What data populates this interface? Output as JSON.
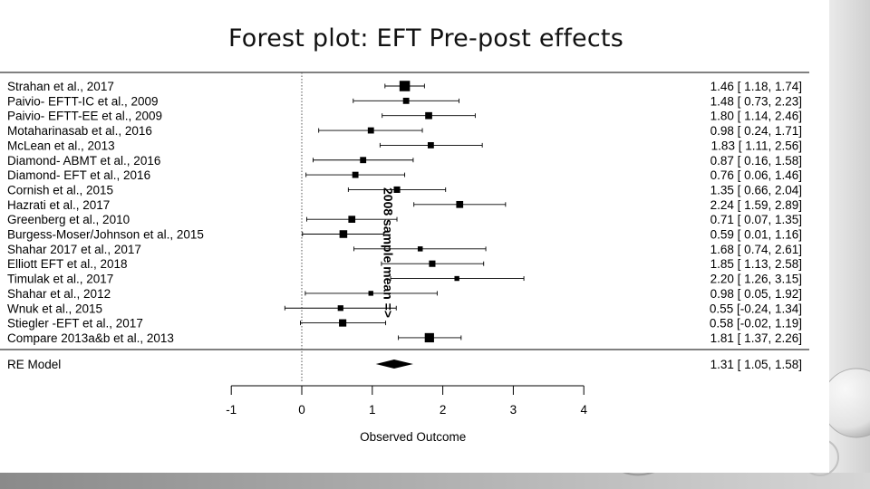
{
  "title": "Forest plot: EFT Pre-post effects",
  "chart_data": {
    "type": "forest",
    "xlabel": "Observed Outcome",
    "xlim": [
      -1,
      4
    ],
    "xticks": [
      -1,
      0,
      1,
      2,
      3,
      4
    ],
    "reference_line": 0,
    "studies": [
      {
        "label": "Strahan et al., 2017",
        "estimate": 1.46,
        "lower": 1.18,
        "upper": 1.74,
        "ci_text": "1.46 [ 1.18, 1.74]",
        "weight": 1.0
      },
      {
        "label": "Paivio- EFTT-IC et al., 2009",
        "estimate": 1.48,
        "lower": 0.73,
        "upper": 2.23,
        "ci_text": "1.48 [ 0.73, 2.23]",
        "weight": 0.45
      },
      {
        "label": "Paivio- EFTT-EE et al., 2009",
        "estimate": 1.8,
        "lower": 1.14,
        "upper": 2.46,
        "ci_text": "1.80 [ 1.14, 2.46]",
        "weight": 0.55
      },
      {
        "label": "Motaharinasab et al., 2016",
        "estimate": 0.98,
        "lower": 0.24,
        "upper": 1.71,
        "ci_text": "0.98 [ 0.24, 1.71]",
        "weight": 0.45
      },
      {
        "label": "McLean et al., 2013",
        "estimate": 1.83,
        "lower": 1.11,
        "upper": 2.56,
        "ci_text": "1.83 [ 1.11, 2.56]",
        "weight": 0.45
      },
      {
        "label": "Diamond- ABMT et al., 2016",
        "estimate": 0.87,
        "lower": 0.16,
        "upper": 1.58,
        "ci_text": "0.87 [ 0.16, 1.58]",
        "weight": 0.45
      },
      {
        "label": "Diamond- EFT et al., 2016",
        "estimate": 0.76,
        "lower": 0.06,
        "upper": 1.46,
        "ci_text": "0.76 [ 0.06, 1.46]",
        "weight": 0.45
      },
      {
        "label": "Cornish et al., 2015",
        "estimate": 1.35,
        "lower": 0.66,
        "upper": 2.04,
        "ci_text": "1.35 [ 0.66, 2.04]",
        "weight": 0.48
      },
      {
        "label": "Hazrati et al., 2017",
        "estimate": 2.24,
        "lower": 1.59,
        "upper": 2.89,
        "ci_text": "2.24 [ 1.59, 2.89]",
        "weight": 0.55
      },
      {
        "label": "Greenberg et al., 2010",
        "estimate": 0.71,
        "lower": 0.07,
        "upper": 1.35,
        "ci_text": "0.71 [ 0.07, 1.35]",
        "weight": 0.55
      },
      {
        "label": "Burgess-Moser/Johnson et al., 2015",
        "estimate": 0.59,
        "lower": 0.01,
        "upper": 1.16,
        "ci_text": "0.59 [ 0.01, 1.16]",
        "weight": 0.65
      },
      {
        "label": "Shahar 2017 et al., 2017",
        "estimate": 1.68,
        "lower": 0.74,
        "upper": 2.61,
        "ci_text": "1.68 [ 0.74, 2.61]",
        "weight": 0.3
      },
      {
        "label": "Elliott EFT et al., 2018",
        "estimate": 1.85,
        "lower": 1.13,
        "upper": 2.58,
        "ci_text": "1.85 [ 1.13, 2.58]",
        "weight": 0.48
      },
      {
        "label": "Timulak et al., 2017",
        "estimate": 2.2,
        "lower": 1.26,
        "upper": 3.15,
        "ci_text": "2.20 [ 1.26, 3.15]",
        "weight": 0.28
      },
      {
        "label": "Shahar et al., 2012",
        "estimate": 0.98,
        "lower": 0.05,
        "upper": 1.92,
        "ci_text": "0.98 [ 0.05, 1.92]",
        "weight": 0.28
      },
      {
        "label": "Wnuk et al., 2015",
        "estimate": 0.55,
        "lower": -0.24,
        "upper": 1.34,
        "ci_text": "0.55 [-0.24, 1.34]",
        "weight": 0.38
      },
      {
        "label": "Stiegler -EFT et al., 2017",
        "estimate": 0.58,
        "lower": -0.02,
        "upper": 1.19,
        "ci_text": "0.58 [-0.02, 1.19]",
        "weight": 0.6
      },
      {
        "label": "Compare 2013a&b et al., 2013",
        "estimate": 1.81,
        "lower": 1.37,
        "upper": 2.26,
        "ci_text": "1.81 [ 1.37, 2.26]",
        "weight": 0.85
      }
    ],
    "summary": {
      "label": "RE Model",
      "estimate": 1.31,
      "lower": 1.05,
      "upper": 1.58,
      "ci_text": "1.31 [ 1.05, 1.58]"
    },
    "annotation": {
      "text": "2008 sample mean =>",
      "x": 1.1
    }
  }
}
